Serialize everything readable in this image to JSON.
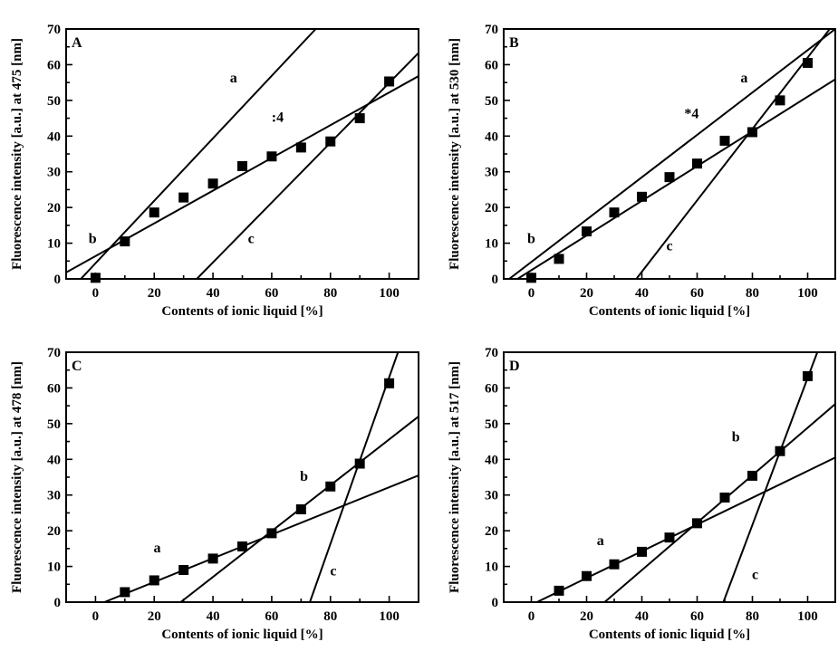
{
  "figure": {
    "layout": "2x2 panels"
  },
  "chart_data": [
    {
      "type": "scatter",
      "panel": "A",
      "xlabel": "Contents of ionic liquid [%]",
      "ylabel": "Fluorescence intensity [a.u.] at 475 [nm]",
      "xlim": [
        -10,
        110
      ],
      "ylim": [
        0,
        70
      ],
      "xticks": [
        0,
        20,
        40,
        60,
        80,
        100
      ],
      "yticks": [
        0,
        10,
        20,
        30,
        40,
        50,
        60,
        70
      ],
      "points": {
        "x": [
          0,
          10,
          20,
          30,
          40,
          50,
          60,
          70,
          80,
          90,
          100
        ],
        "y": [
          0.3,
          10.5,
          18.6,
          22.8,
          26.7,
          31.6,
          34.3,
          36.8,
          38.5,
          45.0,
          55.3
        ]
      },
      "lines": [
        {
          "label": "a",
          "from": [
            -5,
            0
          ],
          "to": [
            75,
            70
          ]
        },
        {
          "label": "b",
          "from": [
            -10,
            1.8
          ],
          "to": [
            110,
            56.8
          ]
        },
        {
          "label": "c",
          "from": [
            34.5,
            0
          ],
          "to": [
            110,
            63.3
          ]
        }
      ],
      "annotations": [
        {
          "text": "a",
          "x": 47,
          "y": 55
        },
        {
          "text": ":4",
          "x": 62,
          "y": 44
        },
        {
          "text": "b",
          "x": -1,
          "y": 10
        },
        {
          "text": "c",
          "x": 53,
          "y": 10
        }
      ]
    },
    {
      "type": "scatter",
      "panel": "B",
      "xlabel": "Contents of ionic liquid [%]",
      "ylabel": "Fluorescence intensity [a.u.] at 530 [nm]",
      "xlim": [
        -10,
        110
      ],
      "ylim": [
        0,
        70
      ],
      "xticks": [
        0,
        20,
        40,
        60,
        80,
        100
      ],
      "yticks": [
        0,
        10,
        20,
        30,
        40,
        50,
        60,
        70
      ],
      "points": {
        "x": [
          0,
          10,
          20,
          30,
          40,
          50,
          60,
          70,
          80,
          90,
          100
        ],
        "y": [
          0.3,
          5.6,
          13.3,
          18.6,
          23.0,
          28.5,
          32.3,
          38.7,
          41.1,
          50.0,
          60.5
        ]
      },
      "lines": [
        {
          "label": "a",
          "from": [
            -8,
            0
          ],
          "to": [
            110,
            70
          ]
        },
        {
          "label": "b",
          "from": [
            -5,
            0
          ],
          "to": [
            110,
            55.9
          ]
        },
        {
          "label": "c",
          "from": [
            38,
            0
          ],
          "to": [
            110,
            72
          ]
        }
      ],
      "annotations": [
        {
          "text": "a",
          "x": 77,
          "y": 55
        },
        {
          "text": "*4",
          "x": 58,
          "y": 45
        },
        {
          "text": "b",
          "x": 0,
          "y": 10
        },
        {
          "text": "c",
          "x": 50,
          "y": 8
        }
      ]
    },
    {
      "type": "scatter",
      "panel": "C",
      "xlabel": "Contents of ionic liquid [%]",
      "ylabel": "Fluorescence intensity [a.u.] at 478 [nm]",
      "xlim": [
        -10,
        110
      ],
      "ylim": [
        0,
        70
      ],
      "xticks": [
        0,
        20,
        40,
        60,
        80,
        100
      ],
      "yticks": [
        0,
        10,
        20,
        30,
        40,
        50,
        60,
        70
      ],
      "points": {
        "x": [
          10,
          20,
          30,
          40,
          50,
          60,
          70,
          80,
          90,
          100
        ],
        "y": [
          2.8,
          6.1,
          9.0,
          12.2,
          15.6,
          19.3,
          26.0,
          32.4,
          38.8,
          61.3
        ]
      },
      "lines": [
        {
          "label": "a",
          "from": [
            3,
            0
          ],
          "to": [
            110,
            35.5
          ]
        },
        {
          "label": "b",
          "from": [
            29,
            0
          ],
          "to": [
            110,
            52
          ]
        },
        {
          "label": "c",
          "from": [
            73,
            0
          ],
          "to": [
            103,
            70
          ]
        }
      ],
      "annotations": [
        {
          "text": "a",
          "x": 21,
          "y": 14
        },
        {
          "text": "b",
          "x": 71,
          "y": 34
        },
        {
          "text": "c",
          "x": 81,
          "y": 7.5
        }
      ]
    },
    {
      "type": "scatter",
      "panel": "D",
      "xlabel": "Contents of ionic liquid [%]",
      "ylabel": "Fluorescence intensity [a.u.] at 517 [nm]",
      "xlim": [
        -10,
        110
      ],
      "ylim": [
        0,
        70
      ],
      "xticks": [
        0,
        20,
        40,
        60,
        80,
        100
      ],
      "yticks": [
        0,
        10,
        20,
        30,
        40,
        50,
        60,
        70
      ],
      "points": {
        "x": [
          10,
          20,
          30,
          40,
          50,
          60,
          70,
          80,
          90,
          100
        ],
        "y": [
          3.2,
          7.3,
          10.6,
          14.1,
          18.1,
          22.1,
          29.3,
          35.4,
          42.3,
          63.3
        ]
      },
      "lines": [
        {
          "label": "a",
          "from": [
            2,
            0
          ],
          "to": [
            110,
            40.5
          ]
        },
        {
          "label": "b",
          "from": [
            26.5,
            0
          ],
          "to": [
            110,
            55.5
          ]
        },
        {
          "label": "c",
          "from": [
            69.5,
            0
          ],
          "to": [
            103.5,
            70
          ]
        }
      ],
      "annotations": [
        {
          "text": "a",
          "x": 25,
          "y": 16
        },
        {
          "text": "b",
          "x": 74,
          "y": 45
        },
        {
          "text": "c",
          "x": 81,
          "y": 6.5
        }
      ]
    }
  ]
}
